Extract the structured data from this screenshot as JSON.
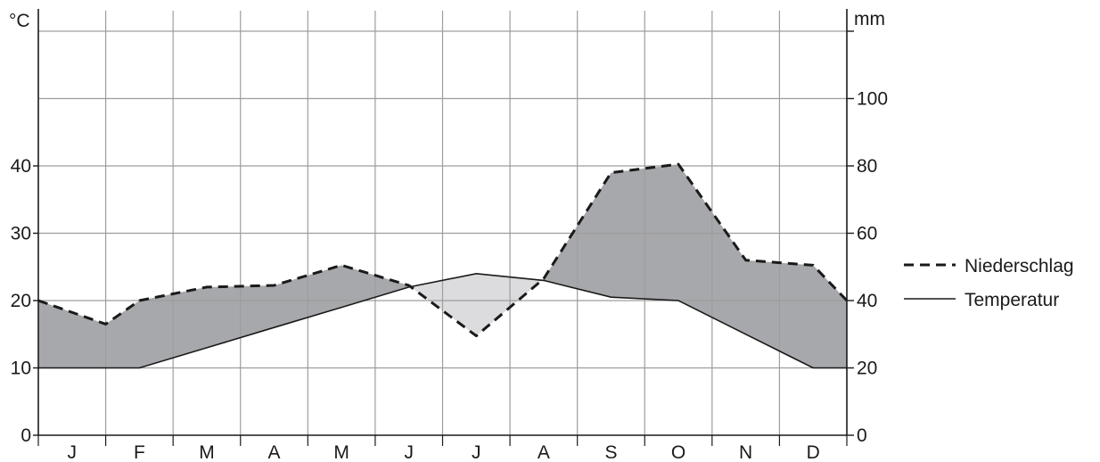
{
  "chart_data": {
    "type": "area",
    "categories": [
      "J",
      "F",
      "M",
      "A",
      "M",
      "J",
      "J",
      "A",
      "S",
      "O",
      "N",
      "D"
    ],
    "x": [
      0,
      1,
      1.5,
      2.5,
      3.5,
      4.5,
      5.5,
      6.5,
      7.5,
      8.5,
      9.5,
      10.5,
      11.5,
      12
    ],
    "series": [
      {
        "name": "Temperatur",
        "axis": "left",
        "style": "solid",
        "values": [
          10,
          10,
          10,
          13,
          16,
          19,
          22,
          24,
          23,
          20.5,
          20,
          15,
          10,
          10
        ]
      },
      {
        "name": "Niederschlag",
        "axis": "right",
        "style": "dashed",
        "values": [
          40,
          33,
          40,
          44,
          44.5,
          50.5,
          44.5,
          29.5,
          46.5,
          78,
          80.5,
          52,
          50.5,
          40
        ]
      }
    ],
    "left_axis": {
      "label": "°C",
      "ticks": [
        0,
        10,
        20,
        30,
        40
      ],
      "range": [
        0,
        60
      ]
    },
    "right_axis": {
      "label": "mm",
      "ticks": [
        0,
        20,
        40,
        60,
        80,
        100
      ],
      "range": [
        0,
        120
      ]
    },
    "grid": true,
    "fill_colors": {
      "humid": "#a7a8ab",
      "arid": "#dcdcde"
    },
    "line_color": "#1a1a1a",
    "grid_color": "#9d9d9d",
    "legend": {
      "position": "right",
      "entries": [
        {
          "label": "Niederschlag",
          "style": "dashed"
        },
        {
          "label": "Temperatur",
          "style": "solid"
        }
      ]
    }
  }
}
